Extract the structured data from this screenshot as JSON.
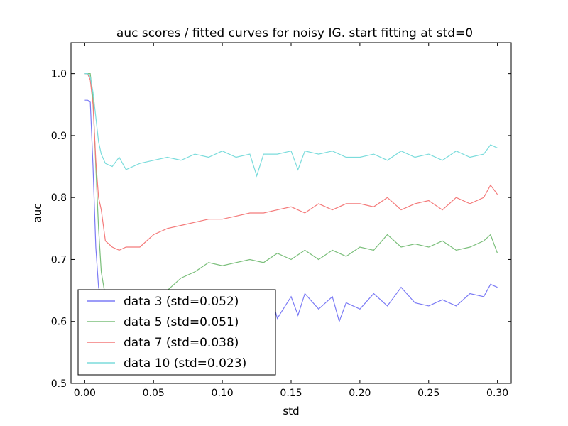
{
  "chart_data": {
    "type": "line",
    "title": "auc scores / fitted curves for noisy IG. start fitting at std=0",
    "xlabel": "std",
    "ylabel": "auc",
    "xlim": [
      -0.01,
      0.31
    ],
    "ylim": [
      0.5,
      1.05
    ],
    "xticks": [
      0.0,
      0.05,
      0.1,
      0.15,
      0.2,
      0.25,
      0.3
    ],
    "xtick_labels": [
      "0.00",
      "0.05",
      "0.10",
      "0.15",
      "0.20",
      "0.25",
      "0.30"
    ],
    "yticks": [
      0.5,
      0.6,
      0.7,
      0.8,
      0.9,
      1.0
    ],
    "ytick_labels": [
      "0.5",
      "0.6",
      "0.7",
      "0.8",
      "0.9",
      "1.0"
    ],
    "grid": false,
    "legend_position": "lower-left",
    "series": [
      {
        "name": "data 3 (std=0.052)",
        "color": "#7b7bf5",
        "x": [
          0.0,
          0.002,
          0.004,
          0.006,
          0.008,
          0.01,
          0.012,
          0.015,
          0.02,
          0.03,
          0.04,
          0.05,
          0.06,
          0.07,
          0.08,
          0.09,
          0.1,
          0.11,
          0.12,
          0.13,
          0.135,
          0.14,
          0.15,
          0.155,
          0.16,
          0.17,
          0.18,
          0.185,
          0.19,
          0.2,
          0.21,
          0.22,
          0.23,
          0.24,
          0.25,
          0.26,
          0.27,
          0.28,
          0.29,
          0.295,
          0.3
        ],
        "y": [
          0.957,
          0.957,
          0.955,
          0.85,
          0.72,
          0.655,
          0.64,
          0.63,
          0.62,
          0.615,
          0.62,
          0.62,
          0.615,
          0.62,
          0.62,
          0.625,
          0.62,
          0.625,
          0.62,
          0.625,
          0.645,
          0.605,
          0.64,
          0.61,
          0.645,
          0.62,
          0.64,
          0.6,
          0.63,
          0.62,
          0.645,
          0.625,
          0.655,
          0.63,
          0.625,
          0.635,
          0.625,
          0.645,
          0.64,
          0.66,
          0.655
        ]
      },
      {
        "name": "data 5 (std=0.051)",
        "color": "#7bbf7b",
        "x": [
          0.0,
          0.002,
          0.004,
          0.006,
          0.008,
          0.01,
          0.012,
          0.015,
          0.02,
          0.03,
          0.04,
          0.05,
          0.06,
          0.07,
          0.08,
          0.09,
          0.1,
          0.11,
          0.12,
          0.13,
          0.14,
          0.15,
          0.16,
          0.17,
          0.18,
          0.19,
          0.2,
          0.21,
          0.22,
          0.23,
          0.24,
          0.25,
          0.26,
          0.27,
          0.28,
          0.29,
          0.295,
          0.3
        ],
        "y": [
          1.0,
          1.0,
          1.0,
          0.96,
          0.85,
          0.75,
          0.68,
          0.64,
          0.62,
          0.615,
          0.62,
          0.63,
          0.65,
          0.67,
          0.68,
          0.695,
          0.69,
          0.695,
          0.7,
          0.695,
          0.71,
          0.7,
          0.715,
          0.7,
          0.715,
          0.705,
          0.72,
          0.715,
          0.74,
          0.72,
          0.725,
          0.72,
          0.73,
          0.715,
          0.72,
          0.73,
          0.74,
          0.71
        ]
      },
      {
        "name": "data 7 (std=0.038)",
        "color": "#f47a7a",
        "x": [
          0.0,
          0.002,
          0.004,
          0.006,
          0.008,
          0.01,
          0.012,
          0.015,
          0.02,
          0.025,
          0.03,
          0.04,
          0.05,
          0.06,
          0.07,
          0.08,
          0.09,
          0.1,
          0.11,
          0.12,
          0.13,
          0.14,
          0.15,
          0.16,
          0.17,
          0.18,
          0.19,
          0.2,
          0.21,
          0.22,
          0.23,
          0.24,
          0.25,
          0.26,
          0.27,
          0.28,
          0.29,
          0.295,
          0.3
        ],
        "y": [
          1.0,
          1.0,
          0.99,
          0.95,
          0.86,
          0.8,
          0.78,
          0.73,
          0.72,
          0.715,
          0.72,
          0.72,
          0.74,
          0.75,
          0.755,
          0.76,
          0.765,
          0.765,
          0.77,
          0.775,
          0.775,
          0.78,
          0.785,
          0.775,
          0.79,
          0.78,
          0.79,
          0.79,
          0.785,
          0.8,
          0.78,
          0.79,
          0.795,
          0.78,
          0.8,
          0.79,
          0.8,
          0.82,
          0.805
        ]
      },
      {
        "name": "data 10 (std=0.023)",
        "color": "#7bdcdc",
        "x": [
          0.0,
          0.002,
          0.004,
          0.006,
          0.008,
          0.01,
          0.012,
          0.015,
          0.02,
          0.025,
          0.03,
          0.04,
          0.05,
          0.06,
          0.07,
          0.08,
          0.09,
          0.1,
          0.11,
          0.12,
          0.125,
          0.13,
          0.14,
          0.15,
          0.155,
          0.16,
          0.17,
          0.18,
          0.19,
          0.2,
          0.21,
          0.22,
          0.23,
          0.24,
          0.25,
          0.26,
          0.27,
          0.28,
          0.29,
          0.295,
          0.3
        ],
        "y": [
          1.0,
          1.0,
          0.995,
          0.97,
          0.93,
          0.89,
          0.87,
          0.855,
          0.85,
          0.865,
          0.845,
          0.855,
          0.86,
          0.865,
          0.86,
          0.87,
          0.865,
          0.875,
          0.865,
          0.87,
          0.835,
          0.87,
          0.87,
          0.875,
          0.845,
          0.875,
          0.87,
          0.875,
          0.865,
          0.865,
          0.87,
          0.86,
          0.875,
          0.865,
          0.87,
          0.86,
          0.875,
          0.865,
          0.87,
          0.885,
          0.88
        ]
      }
    ]
  }
}
